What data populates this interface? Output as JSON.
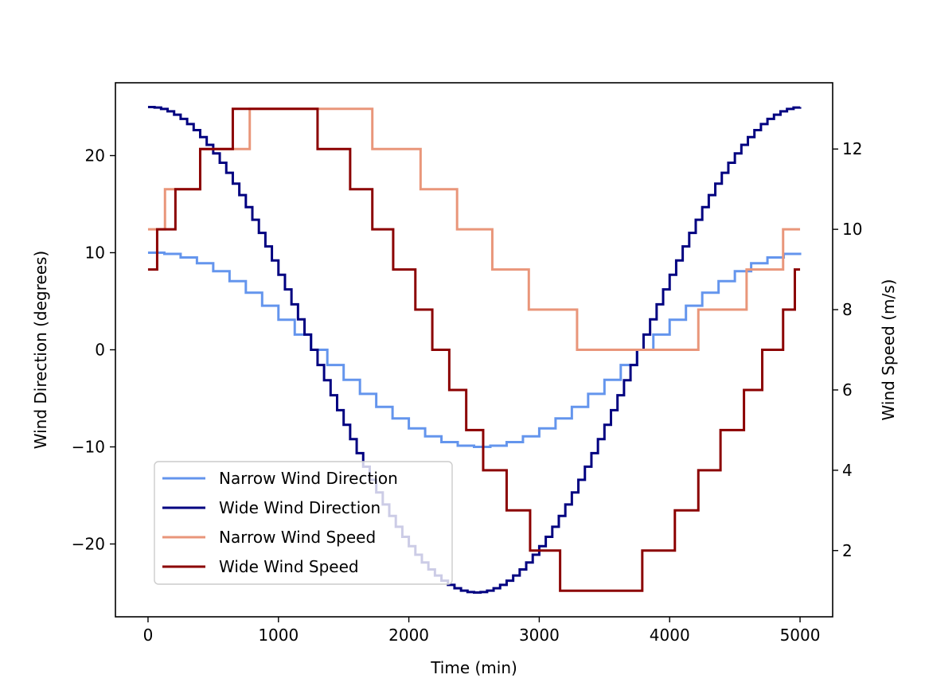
{
  "chart_data": {
    "type": "line",
    "step": "post",
    "title": "",
    "xlabel": "Time (min)",
    "ylabel_left": "Wind Direction (degrees)",
    "ylabel_right": "Wind Speed (m/s)",
    "xlim": [
      -250,
      5250
    ],
    "ylim_left": [
      -27.5,
      27.5
    ],
    "ylim_right": [
      0.35,
      13.65
    ],
    "x_ticks": [
      0,
      1000,
      2000,
      3000,
      4000,
      5000
    ],
    "x_tick_labels": [
      "0",
      "1000",
      "2000",
      "3000",
      "4000",
      "5000"
    ],
    "y_left_ticks": [
      -20,
      -10,
      0,
      10,
      20
    ],
    "y_left_tick_labels": [
      "−20",
      "−10",
      "0",
      "10",
      "20"
    ],
    "y_right_ticks": [
      2,
      4,
      6,
      8,
      10,
      12
    ],
    "y_right_tick_labels": [
      "2",
      "4",
      "6",
      "8",
      "10",
      "12"
    ],
    "legend_position": "lower-left",
    "grid": false,
    "series": [
      {
        "name": "Narrow Wind Direction",
        "axis": "left",
        "color": "#6495ed",
        "generator": "cosine_step",
        "amplitude": 10,
        "period_min": 5000,
        "step_min": 125
      },
      {
        "name": "Wide Wind Direction",
        "axis": "left",
        "color": "#000080",
        "generator": "cosine_step",
        "amplitude": 25,
        "period_min": 5000,
        "step_min": 50
      },
      {
        "name": "Narrow Wind Speed",
        "axis": "right",
        "color": "#e9967a",
        "x": [
          0,
          130,
          400,
          780,
          1720,
          2090,
          2370,
          2640,
          2920,
          3290,
          3660,
          4220,
          4590,
          4870,
          5000
        ],
        "values": [
          10,
          11,
          12,
          13,
          12,
          11,
          10,
          9,
          8,
          7,
          7,
          8,
          9,
          10,
          10
        ]
      },
      {
        "name": "Wide Wind Speed",
        "axis": "right",
        "color": "#8b0000",
        "x": [
          0,
          70,
          210,
          400,
          650,
          1300,
          1550,
          1720,
          1880,
          2050,
          2180,
          2310,
          2440,
          2570,
          2750,
          2930,
          3160,
          3790,
          4040,
          4220,
          4390,
          4570,
          4710,
          4870,
          4960,
          5000
        ],
        "values": [
          9,
          10,
          11,
          12,
          13,
          12,
          11,
          10,
          9,
          8,
          7,
          6,
          5,
          4,
          3,
          2,
          1,
          2,
          3,
          4,
          5,
          6,
          7,
          8,
          9,
          9
        ]
      }
    ]
  }
}
